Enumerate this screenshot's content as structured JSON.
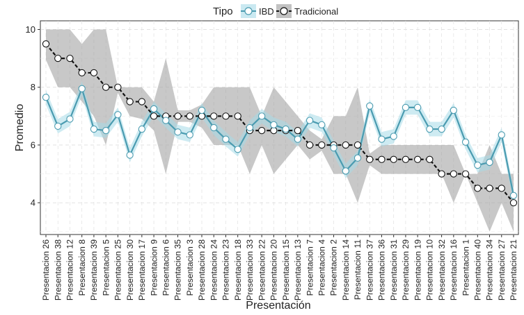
{
  "chart_data": {
    "type": "line",
    "xlabel": "Presentación",
    "ylabel": "Promedio",
    "legend": {
      "title": "Tipo",
      "position": "top"
    },
    "ylim": [
      2.9,
      10.3
    ],
    "yticks": [
      4,
      6,
      8,
      10
    ],
    "grid": true,
    "categories": [
      "Presentacion 26",
      "Presentacion 38",
      "Presentacion 12",
      "Presentacion 8",
      "Presentacion 39",
      "Presentacion 5",
      "Presentacion 25",
      "Presentacion 30",
      "Presentacion 17",
      "Presentacion 9",
      "Presentacion 6",
      "Presentacion 35",
      "Presentacion 3",
      "Presentacion 28",
      "Presentacion 24",
      "Presentacion 23",
      "Presentacion 18",
      "Presentacion 33",
      "Presentacion 22",
      "Presentacion 20",
      "Presentacion 15",
      "Presentacion 13",
      "Presentacion 7",
      "Presentacion 4",
      "Presentacion 2",
      "Presentacion 14",
      "Presentacion 11",
      "Presentacion 37",
      "Presentacion 36",
      "Presentacion 31",
      "Presentacion 29",
      "Presentacion 19",
      "Presentacion 10",
      "Presentacion 32",
      "Presentacion 16",
      "Presentacion 1",
      "Presentacion 40",
      "Presentacion 34",
      "Presentacion 27",
      "Presentacion 21"
    ],
    "series": [
      {
        "name": "IBD",
        "color": "#4a9bb0",
        "band_color": "#a6dbe8",
        "line_style": "solid",
        "values": [
          7.65,
          6.65,
          6.9,
          7.95,
          6.55,
          6.5,
          7.05,
          5.65,
          6.55,
          7.25,
          6.85,
          6.45,
          6.35,
          7.2,
          6.6,
          6.2,
          5.85,
          6.6,
          7.0,
          6.7,
          6.55,
          6.2,
          6.85,
          6.7,
          5.9,
          5.1,
          5.55,
          7.35,
          6.2,
          6.3,
          7.3,
          7.3,
          6.55,
          6.55,
          7.2,
          6.1,
          5.3,
          5.4,
          6.35,
          4.25
        ],
        "lower": [
          7.4,
          6.4,
          6.65,
          7.7,
          6.3,
          6.25,
          6.8,
          5.4,
          6.3,
          7.0,
          6.6,
          6.2,
          6.1,
          6.95,
          6.35,
          5.95,
          5.6,
          6.35,
          6.75,
          6.45,
          6.3,
          5.95,
          6.6,
          6.45,
          5.65,
          4.85,
          5.3,
          7.1,
          5.95,
          6.05,
          7.05,
          7.05,
          6.3,
          6.3,
          6.95,
          5.85,
          5.05,
          5.15,
          6.1,
          4.0
        ],
        "upper": [
          7.9,
          6.9,
          7.15,
          8.2,
          6.8,
          6.75,
          7.3,
          5.9,
          6.8,
          7.5,
          7.1,
          6.7,
          6.6,
          7.45,
          6.85,
          6.45,
          6.1,
          6.85,
          7.25,
          6.95,
          6.8,
          6.45,
          7.1,
          6.95,
          6.15,
          5.35,
          5.8,
          7.6,
          6.45,
          6.55,
          7.55,
          7.55,
          6.8,
          6.8,
          7.45,
          6.35,
          5.55,
          5.65,
          6.6,
          4.5
        ]
      },
      {
        "name": "Tradicional",
        "color": "#111111",
        "band_color": "#9a9a9a",
        "line_style": "dashed",
        "values": [
          9.5,
          9.0,
          9.0,
          8.5,
          8.5,
          8.0,
          8.0,
          7.5,
          7.5,
          7.0,
          7.0,
          7.0,
          7.0,
          7.0,
          7.0,
          7.0,
          7.0,
          6.5,
          6.5,
          6.5,
          6.5,
          6.5,
          6.0,
          6.0,
          6.0,
          6.0,
          6.0,
          5.5,
          5.5,
          5.5,
          5.5,
          5.5,
          5.5,
          5.0,
          5.0,
          5.0,
          4.5,
          4.5,
          4.5,
          4.0
        ],
        "lower": [
          8.95,
          8.0,
          8.0,
          7.5,
          7.0,
          6.0,
          7.8,
          7.0,
          6.9,
          6.5,
          5.0,
          6.8,
          6.8,
          6.6,
          6.0,
          6.0,
          6.0,
          5.0,
          6.0,
          5.0,
          5.5,
          6.0,
          5.5,
          5.8,
          5.0,
          5.0,
          4.0,
          5.3,
          5.0,
          5.0,
          5.0,
          5.0,
          5.0,
          5.0,
          4.0,
          5.0,
          4.0,
          3.0,
          4.0,
          3.0
        ],
        "upper": [
          10.0,
          10.0,
          10.0,
          9.5,
          10.0,
          10.0,
          8.0,
          8.0,
          8.0,
          7.5,
          9.0,
          7.2,
          7.2,
          7.4,
          8.0,
          8.0,
          8.0,
          8.0,
          7.0,
          8.0,
          7.5,
          7.0,
          6.5,
          6.2,
          7.0,
          7.0,
          8.0,
          5.7,
          6.0,
          6.0,
          6.0,
          6.0,
          6.0,
          6.0,
          6.0,
          5.0,
          5.0,
          6.0,
          5.0,
          5.0
        ]
      }
    ]
  }
}
